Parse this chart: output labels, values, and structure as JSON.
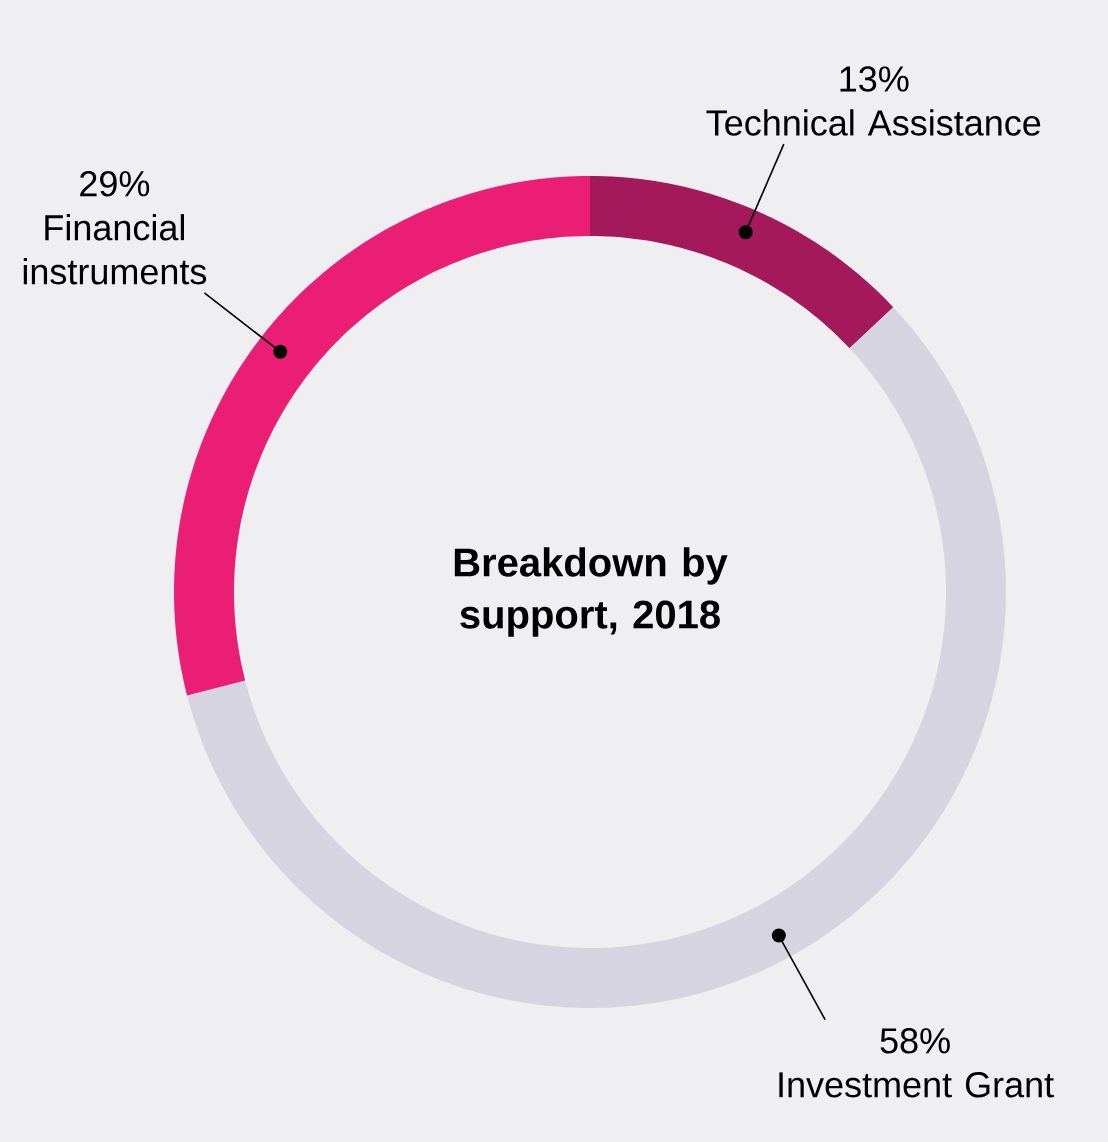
{
  "chart_data": {
    "type": "donut",
    "title": "Breakdown by support, 2018",
    "categories": [
      "Technical Assistance",
      "Investment Grant",
      "Financial instruments"
    ],
    "values": [
      13,
      58,
      29
    ],
    "value_labels": [
      "13%",
      "58%",
      "29%"
    ],
    "colors": [
      "#a3195b",
      "#d6d4e1",
      "#e91e74"
    ]
  }
}
